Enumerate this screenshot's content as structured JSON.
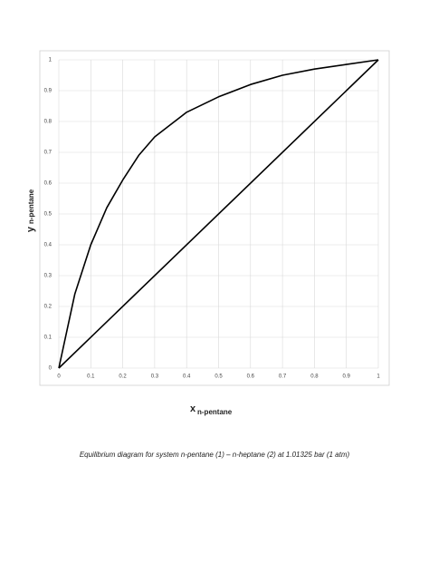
{
  "chart_data": {
    "type": "line",
    "xlabel": "x",
    "xlabel_subscript": "n-pentane",
    "ylabel": "y",
    "ylabel_subscript": "n-pentane",
    "caption": "Equilibrium diagram for system n-pentane (1) – n-heptane (2) at 1.01325 bar (1 atm)",
    "series": [
      {
        "color": "#000000",
        "x": [
          0,
          0.05,
          0.1,
          0.15,
          0.2,
          0.25,
          0.3,
          0.35,
          0.4,
          0.5,
          0.6,
          0.7,
          0.8,
          0.9,
          1
        ],
        "values": [
          0,
          0.24,
          0.4,
          0.52,
          0.61,
          0.69,
          0.75,
          0.79,
          0.83,
          0.88,
          0.92,
          0.95,
          0.97,
          0.985,
          1
        ]
      },
      {
        "color": "#000000",
        "x": [
          0,
          1
        ],
        "values": [
          0,
          1
        ]
      }
    ],
    "xlim": [
      0,
      1
    ],
    "ylim": [
      0,
      1
    ],
    "xticks": [
      0,
      0.1,
      0.2,
      0.3,
      0.4,
      0.5,
      0.6,
      0.7,
      0.8,
      0.9,
      1
    ],
    "yticks": [
      0,
      0.1,
      0.2,
      0.3,
      0.4,
      0.5,
      0.6,
      0.7,
      0.8,
      0.9,
      1
    ],
    "grid": true
  }
}
